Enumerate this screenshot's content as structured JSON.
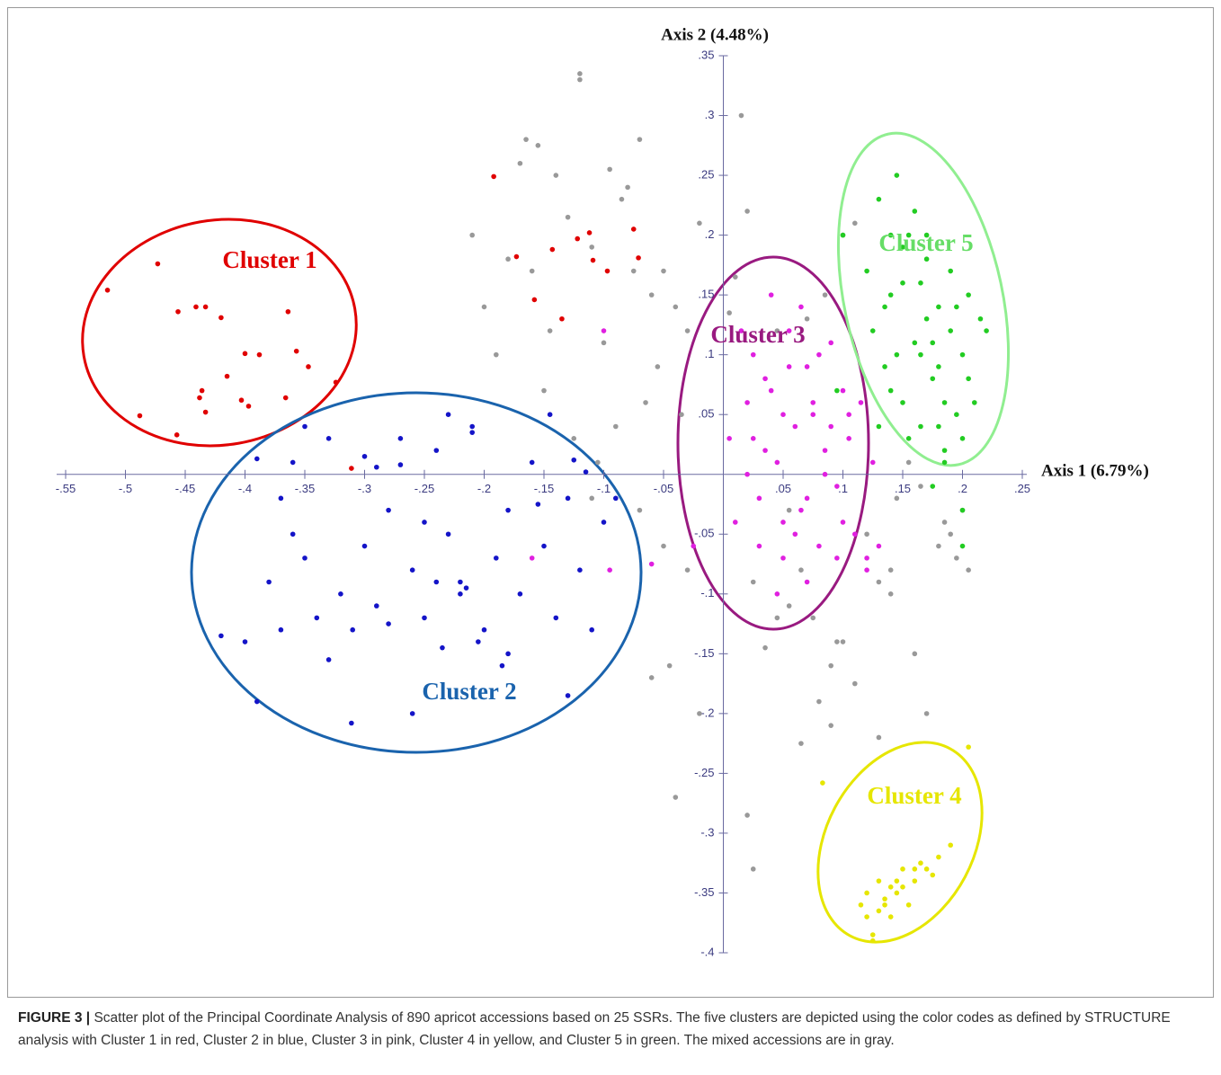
{
  "chart_data": {
    "type": "scatter",
    "x_label": "Axis 1 (6.79%)",
    "y_label": "Axis 2 (4.48%)",
    "xlim": [
      -0.55,
      0.25
    ],
    "ylim": [
      -0.4,
      0.35
    ],
    "xticks": [
      {
        "value": -0.55,
        "label": "-.55"
      },
      {
        "value": -0.5,
        "label": "-.5"
      },
      {
        "value": -0.45,
        "label": "-.45"
      },
      {
        "value": -0.4,
        "label": "-.4"
      },
      {
        "value": -0.35,
        "label": "-.35"
      },
      {
        "value": -0.3,
        "label": "-.3"
      },
      {
        "value": -0.25,
        "label": "-.25"
      },
      {
        "value": -0.2,
        "label": "-.2"
      },
      {
        "value": -0.15,
        "label": "-.15"
      },
      {
        "value": -0.1,
        "label": "-.1"
      },
      {
        "value": -0.05,
        "label": "-.05"
      },
      {
        "value": 0.05,
        "label": ".05"
      },
      {
        "value": 0.1,
        "label": ".1"
      },
      {
        "value": 0.15,
        "label": ".15"
      },
      {
        "value": 0.2,
        "label": ".2"
      },
      {
        "value": 0.25,
        "label": ".25"
      }
    ],
    "yticks": [
      {
        "value": 0.35,
        "label": ".35"
      },
      {
        "value": 0.3,
        "label": ".3"
      },
      {
        "value": 0.25,
        "label": ".25"
      },
      {
        "value": 0.2,
        "label": ".2"
      },
      {
        "value": 0.15,
        "label": ".15"
      },
      {
        "value": 0.1,
        "label": ".1"
      },
      {
        "value": 0.05,
        "label": ".05"
      },
      {
        "value": -0.05,
        "label": "-.05"
      },
      {
        "value": -0.1,
        "label": "-.1"
      },
      {
        "value": -0.15,
        "label": "-.15"
      },
      {
        "value": -0.2,
        "label": "-.2"
      },
      {
        "value": -0.25,
        "label": "-.25"
      },
      {
        "value": -0.3,
        "label": "-.3"
      },
      {
        "value": -0.35,
        "label": "-.35"
      },
      {
        "value": -0.4,
        "label": "-.4"
      }
    ],
    "series": [
      {
        "color": "#999999",
        "x": [
          -0.165,
          -0.155,
          -0.12,
          -0.12,
          -0.095,
          -0.08,
          -0.07,
          -0.21,
          -0.17,
          -0.14,
          -0.13,
          -0.085,
          -0.18,
          -0.16,
          -0.11,
          -0.075,
          -0.2,
          -0.19,
          -0.145,
          -0.1,
          -0.06,
          -0.05,
          -0.04,
          -0.03,
          -0.02,
          -0.065,
          -0.09,
          -0.15,
          -0.125,
          -0.105,
          -0.055,
          -0.035,
          -0.07,
          -0.05,
          -0.11,
          -0.03,
          -0.045,
          -0.02,
          -0.06,
          -0.04,
          0.015,
          0.02,
          0.01,
          0.005,
          0.055,
          0.075,
          0.095,
          0.1,
          0.11,
          0.13,
          0.14,
          0.16,
          0.17,
          0.18,
          0.19,
          0.2,
          0.205,
          0.12,
          0.1,
          0.09,
          0.08,
          0.065,
          0.045,
          0.035,
          0.025,
          0.145,
          0.155,
          0.165,
          0.185,
          0.195,
          0.09,
          0.065,
          0.11,
          0.13,
          0.14,
          0.055,
          0.02,
          0.025,
          0.07,
          0.045,
          0.085
        ],
        "values": [
          0.28,
          0.275,
          0.335,
          0.33,
          0.255,
          0.24,
          0.28,
          0.2,
          0.26,
          0.25,
          0.215,
          0.23,
          0.18,
          0.17,
          0.19,
          0.17,
          0.14,
          0.1,
          0.12,
          0.11,
          0.15,
          0.17,
          0.14,
          0.12,
          0.21,
          0.06,
          0.04,
          0.07,
          0.03,
          0.01,
          0.09,
          0.05,
          -0.03,
          -0.06,
          -0.02,
          -0.08,
          -0.16,
          -0.2,
          -0.17,
          -0.27,
          0.3,
          0.22,
          0.165,
          0.135,
          -0.11,
          -0.12,
          -0.14,
          0.2,
          0.21,
          -0.09,
          -0.1,
          -0.15,
          -0.2,
          -0.06,
          -0.05,
          -0.03,
          -0.08,
          -0.05,
          -0.14,
          -0.16,
          -0.19,
          -0.08,
          -0.12,
          -0.145,
          -0.09,
          -0.02,
          0.01,
          -0.01,
          -0.04,
          -0.07,
          -0.21,
          -0.225,
          -0.175,
          -0.22,
          -0.08,
          -0.03,
          -0.285,
          -0.33,
          0.13,
          0.12,
          0.15
        ]
      },
      {
        "name": "Cluster 1",
        "color": "#e00000",
        "x": [
          -0.515,
          -0.473,
          -0.456,
          -0.441,
          -0.433,
          -0.42,
          -0.364,
          -0.4,
          -0.388,
          -0.357,
          -0.347,
          -0.415,
          -0.436,
          -0.438,
          -0.433,
          -0.403,
          -0.397,
          -0.366,
          -0.488,
          -0.457,
          -0.324,
          -0.311,
          -0.192,
          -0.173,
          -0.158,
          -0.135,
          -0.143,
          -0.122,
          -0.112,
          -0.109,
          -0.075,
          -0.071,
          -0.097
        ],
        "values": [
          0.154,
          0.176,
          0.136,
          0.14,
          0.14,
          0.131,
          0.136,
          0.101,
          0.1,
          0.103,
          0.09,
          0.082,
          0.07,
          0.064,
          0.052,
          0.062,
          0.057,
          0.064,
          0.049,
          0.033,
          0.077,
          0.005,
          0.249,
          0.182,
          0.146,
          0.13,
          0.188,
          0.197,
          0.202,
          0.179,
          0.205,
          0.181,
          0.17
        ]
      },
      {
        "name": "Cluster 2",
        "color": "#1414c8",
        "x": [
          -0.4,
          -0.39,
          -0.38,
          -0.37,
          -0.36,
          -0.35,
          -0.34,
          -0.36,
          -0.33,
          -0.32,
          -0.31,
          -0.3,
          -0.29,
          -0.28,
          -0.27,
          -0.26,
          -0.25,
          -0.24,
          -0.23,
          -0.22,
          -0.21,
          -0.2,
          -0.19,
          -0.18,
          -0.17,
          -0.16,
          -0.15,
          -0.14,
          -0.13,
          -0.12,
          -0.11,
          -0.1,
          -0.09,
          -0.311,
          -0.26,
          -0.13,
          -0.27,
          -0.29,
          -0.24,
          -0.22,
          -0.215,
          -0.3,
          -0.18,
          -0.205,
          -0.115,
          -0.35,
          -0.39,
          -0.42,
          -0.25,
          -0.155,
          -0.145,
          -0.21,
          -0.23,
          -0.28,
          -0.33,
          -0.37,
          -0.125,
          -0.185,
          -0.235
        ],
        "values": [
          -0.14,
          -0.19,
          -0.09,
          -0.02,
          -0.05,
          -0.07,
          -0.12,
          0.01,
          0.03,
          -0.1,
          -0.13,
          -0.06,
          -0.11,
          -0.03,
          0.03,
          -0.08,
          -0.12,
          0.02,
          -0.05,
          -0.09,
          0.04,
          -0.13,
          -0.07,
          -0.03,
          -0.1,
          0.01,
          -0.06,
          -0.12,
          -0.02,
          -0.08,
          -0.13,
          -0.04,
          -0.02,
          -0.208,
          -0.2,
          -0.185,
          0.008,
          0.006,
          -0.09,
          -0.1,
          -0.095,
          0.015,
          -0.15,
          -0.14,
          0.002,
          0.04,
          0.013,
          -0.135,
          -0.04,
          -0.025,
          0.05,
          0.035,
          0.05,
          -0.125,
          -0.155,
          -0.13,
          0.012,
          -0.16,
          -0.145
        ]
      },
      {
        "name": "Cluster 3",
        "color": "#e020e0",
        "x": [
          0.005,
          0.01,
          0.02,
          0.025,
          0.03,
          0.035,
          0.04,
          0.045,
          0.05,
          0.055,
          0.06,
          0.065,
          0.07,
          0.075,
          0.08,
          0.085,
          0.09,
          0.095,
          0.1,
          0.105,
          0.11,
          0.115,
          0.12,
          0.125,
          0.015,
          0.03,
          0.05,
          0.07,
          0.09,
          0.02,
          0.04,
          0.06,
          0.08,
          0.1,
          0.035,
          0.055,
          0.075,
          0.095,
          0.045,
          0.065,
          0.085,
          0.025,
          0.105,
          0.07,
          0.05,
          -0.1,
          -0.095,
          -0.16,
          -0.06,
          -0.025,
          0.13,
          0.12
        ],
        "values": [
          0.03,
          -0.04,
          0.06,
          0.1,
          -0.02,
          0.08,
          0.15,
          0.01,
          -0.07,
          0.12,
          0.04,
          -0.03,
          0.09,
          0.05,
          -0.06,
          0.02,
          0.11,
          -0.01,
          0.07,
          0.03,
          -0.05,
          0.06,
          -0.08,
          0.01,
          0.12,
          -0.06,
          0.05,
          -0.02,
          0.04,
          0.0,
          0.07,
          -0.05,
          0.1,
          -0.04,
          0.02,
          0.09,
          0.06,
          -0.07,
          -0.1,
          0.14,
          0.0,
          0.03,
          0.05,
          -0.09,
          -0.04,
          0.12,
          -0.08,
          -0.07,
          -0.075,
          -0.06,
          -0.06,
          -0.07
        ]
      },
      {
        "name": "Cluster 4",
        "color": "#e6e600",
        "x": [
          0.12,
          0.125,
          0.13,
          0.135,
          0.14,
          0.145,
          0.15,
          0.155,
          0.16,
          0.165,
          0.17,
          0.175,
          0.18,
          0.13,
          0.14,
          0.15,
          0.12,
          0.135,
          0.145,
          0.16,
          0.19,
          0.125,
          0.205,
          0.083,
          0.115
        ],
        "values": [
          -0.37,
          -0.385,
          -0.34,
          -0.355,
          -0.345,
          -0.35,
          -0.33,
          -0.36,
          -0.34,
          -0.325,
          -0.33,
          -0.335,
          -0.32,
          -0.365,
          -0.37,
          -0.345,
          -0.35,
          -0.36,
          -0.34,
          -0.33,
          -0.31,
          -0.39,
          -0.228,
          -0.258,
          -0.36
        ]
      },
      {
        "name": "Cluster 5",
        "color": "#22cc22",
        "x": [
          0.12,
          0.125,
          0.13,
          0.135,
          0.14,
          0.145,
          0.15,
          0.155,
          0.16,
          0.165,
          0.17,
          0.175,
          0.18,
          0.185,
          0.19,
          0.195,
          0.2,
          0.205,
          0.21,
          0.215,
          0.22,
          0.13,
          0.14,
          0.15,
          0.16,
          0.17,
          0.18,
          0.19,
          0.2,
          0.145,
          0.155,
          0.165,
          0.175,
          0.185,
          0.195,
          0.135,
          0.15,
          0.17,
          0.185,
          0.205,
          0.14,
          0.165,
          0.18,
          0.2,
          0.1,
          0.095,
          0.175,
          0.2
        ],
        "values": [
          0.17,
          0.12,
          0.23,
          0.09,
          0.15,
          0.25,
          0.06,
          0.2,
          0.11,
          0.04,
          0.18,
          0.08,
          0.14,
          0.02,
          0.12,
          0.05,
          0.1,
          0.15,
          0.06,
          0.13,
          0.12,
          0.04,
          0.2,
          0.16,
          0.22,
          0.13,
          0.09,
          0.17,
          0.03,
          0.1,
          0.03,
          0.16,
          0.11,
          0.06,
          0.14,
          0.14,
          0.19,
          0.2,
          0.01,
          0.08,
          0.07,
          0.1,
          0.04,
          -0.06,
          0.2,
          0.07,
          -0.01,
          -0.03
        ]
      }
    ],
    "caption_label": "FIGURE 3 |",
    "caption": "Scatter plot of the Principal Coordinate Analysis of 890 apricot accessions based on 25 SSRs. The five clusters are depicted using the color codes as defined by STRUCTURE analysis with Cluster 1 in red, Cluster 2 in blue, Cluster 3 in pink, Cluster 4 in yellow, and Cluster 5 in green. The mixed accessions are in gray."
  }
}
